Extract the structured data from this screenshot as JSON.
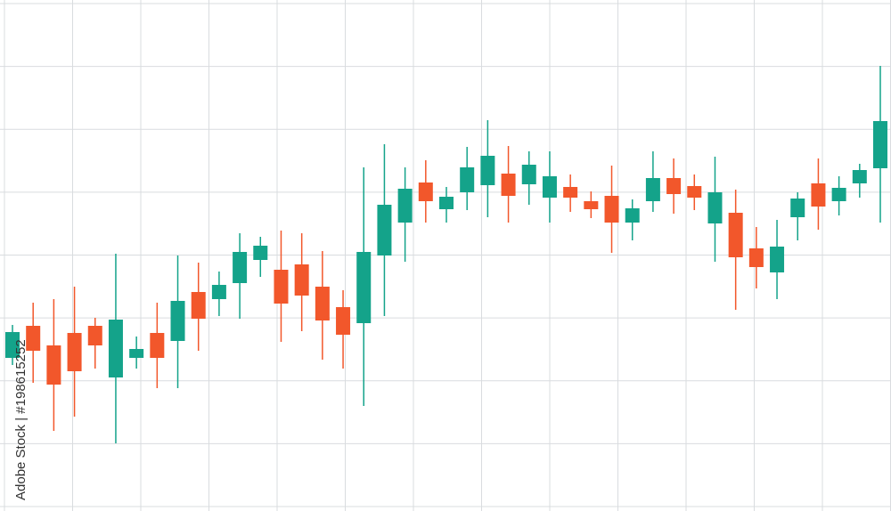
{
  "chart_data": {
    "type": "candlestick",
    "watermark": "Adobe Stock | #198615252",
    "up_color": "#14a38a",
    "down_color": "#f2572b",
    "ylim": [
      0,
      565
    ],
    "grid": true,
    "open": [
      167,
      203,
      181,
      195,
      203,
      145,
      167,
      195,
      186,
      241,
      233,
      251,
      277,
      266,
      272,
      247,
      224,
      206,
      282,
      319,
      364,
      334,
      353,
      361,
      374,
      362,
      347,
      359,
      343,
      349,
      319,
      343,
      369,
      360,
      318,
      330,
      290,
      263,
      325,
      363,
      343,
      363,
      380
    ],
    "high": [
      204,
      229,
      233,
      247,
      212,
      284,
      191,
      229,
      282,
      274,
      264,
      307,
      303,
      310,
      307,
      287,
      243,
      381,
      407,
      381,
      389,
      359,
      404,
      434,
      405,
      399,
      399,
      373,
      354,
      383,
      345,
      399,
      391,
      373,
      393,
      356,
      314,
      322,
      353,
      391,
      371,
      385,
      495
    ],
    "low": [
      159,
      139,
      85,
      101,
      155,
      71,
      155,
      133,
      133,
      175,
      214,
      211,
      258,
      185,
      197,
      165,
      155,
      113,
      214,
      275,
      319,
      319,
      333,
      325,
      319,
      339,
      319,
      331,
      324,
      285,
      299,
      331,
      329,
      333,
      275,
      221,
      245,
      233,
      299,
      311,
      327,
      347,
      319
    ],
    "close": [
      196,
      175,
      137,
      152,
      181,
      210,
      177,
      167,
      231,
      211,
      249,
      286,
      293,
      228,
      237,
      209,
      193,
      286,
      339,
      357,
      343,
      348,
      381,
      394,
      349,
      384,
      371,
      347,
      334,
      319,
      335,
      369,
      351,
      347,
      353,
      280,
      269,
      292,
      346,
      337,
      358,
      378,
      433
    ]
  }
}
